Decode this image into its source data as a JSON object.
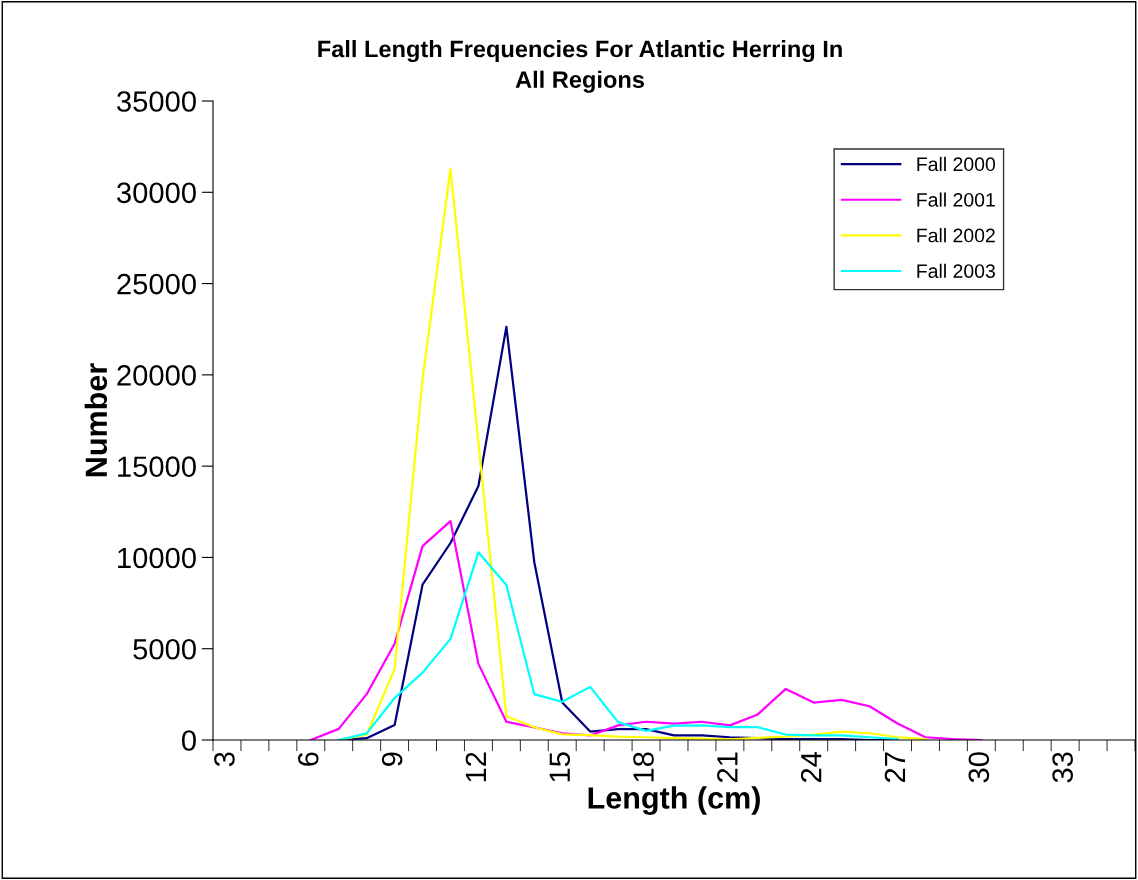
{
  "chart_data": {
    "type": "line",
    "title": "Fall Length Frequencies For Atlantic Herring In\nAll Regions",
    "xlabel": "Length (cm)",
    "ylabel": "Number",
    "categories": [
      "3",
      null,
      null,
      "6",
      null,
      null,
      "9",
      null,
      null,
      "12",
      null,
      null,
      "15",
      null,
      null,
      "18",
      null,
      null,
      "21",
      null,
      null,
      "24",
      null,
      null,
      "27",
      null,
      null,
      "30",
      null,
      null,
      "33",
      null,
      null
    ],
    "series": [
      {
        "name": "Fall 2000",
        "color": "#000080",
        "values": [
          null,
          null,
          null,
          null,
          0,
          100,
          820,
          8510,
          10790,
          13910,
          22630,
          9740,
          2050,
          460,
          600,
          600,
          250,
          250,
          150,
          100,
          50,
          50,
          50,
          0,
          0,
          null,
          null,
          null,
          null,
          null,
          null,
          null,
          null
        ]
      },
      {
        "name": "Fall 2001",
        "color": "#ff00ff",
        "values": [
          null,
          null,
          null,
          0,
          610,
          2510,
          5270,
          10620,
          11990,
          4170,
          1000,
          690,
          370,
          250,
          800,
          1000,
          900,
          1000,
          800,
          1400,
          2800,
          2050,
          2200,
          1850,
          900,
          150,
          50,
          0,
          null,
          null,
          null,
          null,
          null
        ]
      },
      {
        "name": "Fall 2002",
        "color": "#ffff00",
        "values": [
          null,
          null,
          null,
          null,
          0,
          290,
          3880,
          19750,
          31290,
          16300,
          1300,
          700,
          310,
          270,
          180,
          150,
          100,
          80,
          30,
          120,
          180,
          300,
          460,
          370,
          150,
          50,
          null,
          null,
          null,
          null,
          null,
          null,
          null
        ]
      },
      {
        "name": "Fall 2003",
        "color": "#00ffff",
        "values": [
          null,
          null,
          null,
          null,
          0,
          360,
          2300,
          3690,
          5540,
          10280,
          8490,
          2510,
          2090,
          2910,
          980,
          500,
          790,
          800,
          700,
          700,
          300,
          250,
          250,
          150,
          50,
          null,
          null,
          null,
          null,
          null,
          null,
          null,
          null
        ]
      }
    ],
    "ylim": [
      0,
      35000
    ],
    "yticks": [
      0,
      5000,
      10000,
      15000,
      20000,
      25000,
      30000,
      35000
    ],
    "legend": "top right",
    "grid": false
  }
}
